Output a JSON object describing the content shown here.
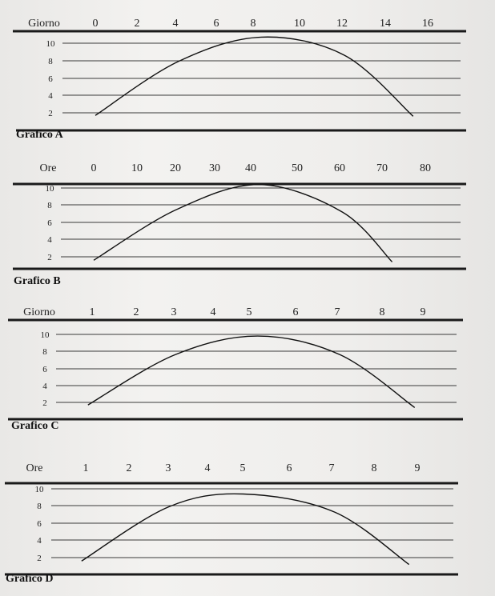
{
  "chart_data": [
    {
      "type": "line",
      "title": "Grafico A",
      "xlabel": "Giorno",
      "categories": [
        "0",
        "2",
        "4",
        "6",
        "8",
        "10",
        "12",
        "14",
        "16"
      ],
      "y_ticks": [
        "10",
        "8",
        "6",
        "4",
        "2"
      ],
      "ylim": [
        1,
        11
      ],
      "grid": true,
      "series": [
        {
          "x": [
            0,
            4,
            8,
            12,
            15.3
          ],
          "y": [
            1.7,
            7.9,
            10.7,
            8.6,
            1.6
          ]
        }
      ]
    },
    {
      "type": "line",
      "title": "Grafico B",
      "xlabel": "Ore",
      "categories": [
        "0",
        "10",
        "20",
        "30",
        "40",
        "50",
        "60",
        "70",
        "80"
      ],
      "y_ticks": [
        "10",
        "8",
        "6",
        "4",
        "2"
      ],
      "ylim": [
        1,
        11
      ],
      "grid": true,
      "series": [
        {
          "x": [
            0,
            20,
            40,
            60,
            72
          ],
          "y": [
            1.6,
            7.5,
            10.4,
            7.2,
            1.4
          ]
        }
      ]
    },
    {
      "type": "line",
      "title": "Grafico C",
      "xlabel": "Giorno",
      "categories": [
        "1",
        "2",
        "3",
        "4",
        "5",
        "6",
        "7",
        "8",
        "9"
      ],
      "y_ticks": [
        "10",
        "8",
        "6",
        "4",
        "2"
      ],
      "ylim": [
        1,
        11
      ],
      "grid": true,
      "series": [
        {
          "x": [
            0.9,
            3,
            5,
            7,
            8.8
          ],
          "y": [
            1.7,
            7.6,
            9.8,
            7.6,
            1.4
          ]
        }
      ]
    },
    {
      "type": "line",
      "title": "Grafico D",
      "xlabel": "Ore",
      "categories": [
        "1",
        "2",
        "3",
        "4",
        "5",
        "6",
        "7",
        "8",
        "9"
      ],
      "y_ticks": [
        "10",
        "8",
        "6",
        "4",
        "2"
      ],
      "ylim": [
        1,
        11
      ],
      "grid": true,
      "series": [
        {
          "x": [
            0.9,
            3,
            4.8,
            7,
            8.8
          ],
          "y": [
            1.6,
            7.9,
            9.4,
            7.3,
            1.2
          ]
        }
      ]
    }
  ]
}
